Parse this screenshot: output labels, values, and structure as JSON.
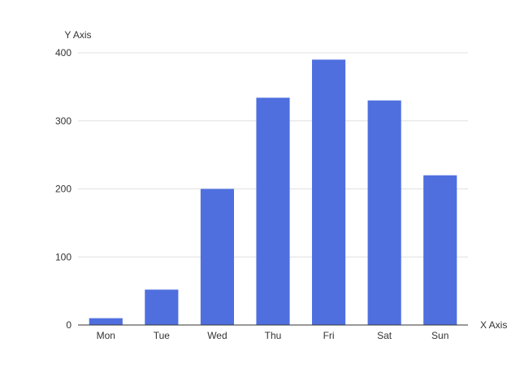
{
  "chart_data": {
    "type": "bar",
    "categories": [
      "Mon",
      "Tue",
      "Wed",
      "Thu",
      "Fri",
      "Sat",
      "Sun"
    ],
    "values": [
      10,
      52,
      200,
      334,
      390,
      330,
      220
    ],
    "xlabel": "X Axis",
    "ylabel": "Y Axis",
    "ylim": [
      0,
      400
    ],
    "yticks": [
      0,
      100,
      200,
      300,
      400
    ],
    "grid": true,
    "bar_color": "#4f6fdf"
  }
}
